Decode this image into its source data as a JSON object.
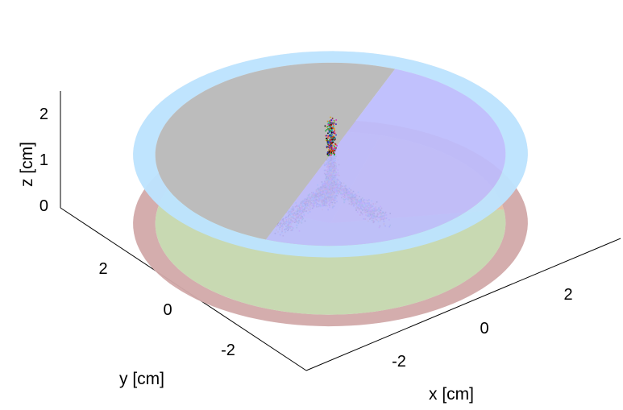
{
  "chart_data": {
    "type": "scatter3d",
    "title": "",
    "axes": {
      "x": {
        "label": "x [cm]",
        "ticks": [
          -2,
          0,
          2
        ],
        "tick_labels": [
          "-2",
          "0",
          "2"
        ]
      },
      "y": {
        "label": "y [cm]",
        "ticks": [
          -2,
          0,
          2
        ],
        "tick_labels": [
          "-2",
          "0",
          "2"
        ]
      },
      "z": {
        "label": "z [cm]",
        "ticks": [
          0,
          1,
          2
        ],
        "tick_labels": [
          "0",
          "1",
          "2"
        ]
      }
    },
    "cylinder": {
      "radius": 4,
      "z_bottom": 0,
      "z_top": 1.5,
      "ring_width": 0.45
    },
    "bottom_sectors": [
      {
        "color": "#c8d9b2",
        "from_deg": 120,
        "to_deg": 330
      },
      {
        "color": "#e6c2a8",
        "from_deg": 330,
        "to_deg": 395
      },
      {
        "color": "#ddbfb8",
        "from_deg": 35,
        "to_deg": 120
      }
    ],
    "top_halves": [
      {
        "color": "#bcbcbc",
        "side": "back"
      },
      {
        "color": "#bcbcff",
        "side": "front"
      }
    ],
    "top_ring_color": "#bde4ff",
    "bottom_ring_color": "#d2a6a6",
    "scatter": {
      "description_shape": "inverted-Y branching cluster",
      "trunk": {
        "x": 0,
        "y": 0,
        "z_from": 0.9,
        "z_to": 1.5
      },
      "branches": [
        {
          "to_x": -0.9,
          "to_y": 0.5,
          "to_z": 0.0
        },
        {
          "to_x": 0.9,
          "to_y": -0.5,
          "to_z": 0.0
        },
        {
          "to_x": 0.3,
          "to_y": 0.6,
          "to_z": 0.1
        }
      ],
      "colors": [
        "#e6261f",
        "#1f9e3a",
        "#2a3bd6",
        "#c931c9",
        "#111111",
        "#d8a21a",
        "#27b5c9",
        "#7a2b1f"
      ]
    }
  }
}
